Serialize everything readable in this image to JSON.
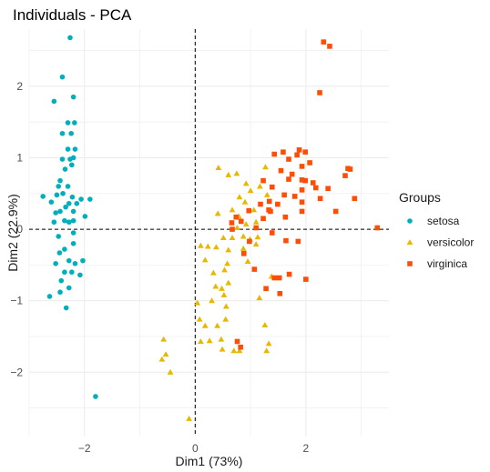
{
  "chart_data": {
    "type": "scatter",
    "title": "Individuals - PCA",
    "xlabel": "Dim1 (73%)",
    "ylabel": "Dim2 (22.9%)",
    "xlim": [
      -3.0,
      3.5
    ],
    "ylim": [
      -2.9,
      2.8
    ],
    "xticks": [
      -2,
      0,
      2
    ],
    "yticks": [
      -2,
      -1,
      0,
      1,
      2
    ],
    "grid": true,
    "reference_lines": {
      "x": 0,
      "y": 0,
      "style": "dashed"
    },
    "legend": {
      "title": "Groups",
      "position": "right"
    },
    "series": [
      {
        "name": "setosa",
        "marker": "circle",
        "color": "#00AFBB",
        "points": [
          [
            -2.26,
            2.68
          ],
          [
            -2.4,
            2.13
          ],
          [
            -2.55,
            1.79
          ],
          [
            -2.2,
            1.85
          ],
          [
            -2.3,
            1.49
          ],
          [
            -2.18,
            1.49
          ],
          [
            -2.4,
            1.34
          ],
          [
            -2.24,
            1.34
          ],
          [
            -2.3,
            1.12
          ],
          [
            -2.17,
            1.12
          ],
          [
            -2.4,
            0.98
          ],
          [
            -2.26,
            0.98
          ],
          [
            -2.2,
            1.0
          ],
          [
            -2.35,
            0.84
          ],
          [
            -2.23,
            0.9
          ],
          [
            -2.44,
            0.68
          ],
          [
            -2.3,
            0.6
          ],
          [
            -2.39,
            0.5
          ],
          [
            -2.5,
            0.48
          ],
          [
            -2.6,
            0.38
          ],
          [
            -2.22,
            0.45
          ],
          [
            -2.28,
            0.36
          ],
          [
            -2.75,
            0.46
          ],
          [
            -2.47,
            0.6
          ],
          [
            -2.2,
            0.25
          ],
          [
            -2.06,
            0.42
          ],
          [
            -1.9,
            0.42
          ],
          [
            -2.34,
            0.31
          ],
          [
            -2.14,
            0.36
          ],
          [
            -2.44,
            0.25
          ],
          [
            -2.52,
            0.23
          ],
          [
            -2.2,
            0.12
          ],
          [
            -2.36,
            0.12
          ],
          [
            -1.99,
            0.18
          ],
          [
            -2.28,
            0.1
          ],
          [
            -2.55,
            0.1
          ],
          [
            -2.2,
            -0.05
          ],
          [
            -2.47,
            -0.1
          ],
          [
            -2.2,
            -0.2
          ],
          [
            -2.36,
            -0.28
          ],
          [
            -2.45,
            -0.33
          ],
          [
            -2.17,
            -0.48
          ],
          [
            -2.28,
            -0.44
          ],
          [
            -2.03,
            -0.44
          ],
          [
            -2.52,
            -0.48
          ],
          [
            -2.36,
            -0.6
          ],
          [
            -2.23,
            -0.6
          ],
          [
            -2.08,
            -0.64
          ],
          [
            -2.42,
            -0.72
          ],
          [
            -2.28,
            -0.82
          ],
          [
            -2.63,
            -0.94
          ],
          [
            -2.44,
            -0.88
          ],
          [
            -2.33,
            -1.1
          ],
          [
            -1.8,
            -2.34
          ]
        ]
      },
      {
        "name": "versicolor",
        "marker": "triangle",
        "color": "#E7B800",
        "points": [
          [
            0.42,
            0.86
          ],
          [
            0.6,
            0.76
          ],
          [
            0.75,
            0.78
          ],
          [
            1.27,
            0.87
          ],
          [
            0.92,
            0.64
          ],
          [
            1.0,
            0.54
          ],
          [
            1.17,
            0.6
          ],
          [
            0.8,
            0.45
          ],
          [
            0.9,
            0.38
          ],
          [
            1.3,
            0.48
          ],
          [
            1.06,
            0.27
          ],
          [
            0.67,
            0.27
          ],
          [
            0.79,
            0.18
          ],
          [
            1.1,
            0.1
          ],
          [
            0.92,
            0.07
          ],
          [
            0.41,
            0.22
          ],
          [
            0.76,
            0.02
          ],
          [
            0.87,
            -0.1
          ],
          [
            0.67,
            -0.12
          ],
          [
            1.13,
            -0.11
          ],
          [
            0.51,
            -0.12
          ],
          [
            0.1,
            -0.23
          ],
          [
            0.23,
            -0.24
          ],
          [
            0.38,
            -0.25
          ],
          [
            0.99,
            -0.14
          ],
          [
            1.1,
            -0.21
          ],
          [
            0.87,
            -0.27
          ],
          [
            0.6,
            -0.29
          ],
          [
            0.18,
            -0.43
          ],
          [
            0.58,
            -0.48
          ],
          [
            0.53,
            -0.57
          ],
          [
            0.33,
            -0.61
          ],
          [
            0.95,
            -0.45
          ],
          [
            0.6,
            -0.75
          ],
          [
            0.48,
            -0.83
          ],
          [
            0.37,
            -0.8
          ],
          [
            0.52,
            -0.92
          ],
          [
            0.3,
            -1.0
          ],
          [
            1.16,
            -0.96
          ],
          [
            0.56,
            -1.08
          ],
          [
            0.55,
            -1.26
          ],
          [
            0.4,
            -1.35
          ],
          [
            0.08,
            -1.26
          ],
          [
            0.04,
            -1.03
          ],
          [
            0.1,
            -1.57
          ],
          [
            0.26,
            -1.56
          ],
          [
            0.49,
            -1.68
          ],
          [
            0.7,
            -1.7
          ],
          [
            0.8,
            -1.7
          ],
          [
            1.26,
            -1.34
          ],
          [
            1.29,
            -1.7
          ],
          [
            0.47,
            -1.54
          ],
          [
            0.18,
            -1.35
          ],
          [
            -0.57,
            -1.54
          ],
          [
            -0.53,
            -1.75
          ],
          [
            -0.6,
            -1.82
          ],
          [
            -0.45,
            -2.0
          ],
          [
            -0.11,
            -2.65
          ],
          [
            1.33,
            -1.6
          ],
          [
            1.38,
            -0.66
          ]
        ]
      },
      {
        "name": "virginica",
        "marker": "square",
        "color": "#FC4E07",
        "points": [
          [
            2.32,
            2.62
          ],
          [
            2.43,
            2.56
          ],
          [
            2.25,
            1.91
          ],
          [
            1.43,
            1.05
          ],
          [
            1.59,
            1.08
          ],
          [
            1.88,
            1.11
          ],
          [
            1.99,
            1.08
          ],
          [
            1.84,
            1.04
          ],
          [
            1.69,
            0.98
          ],
          [
            2.07,
            0.93
          ],
          [
            1.93,
            0.88
          ],
          [
            1.55,
            0.82
          ],
          [
            1.75,
            0.77
          ],
          [
            1.93,
            0.69
          ],
          [
            1.99,
            0.68
          ],
          [
            2.13,
            0.65
          ],
          [
            2.76,
            0.85
          ],
          [
            2.8,
            0.84
          ],
          [
            2.71,
            0.75
          ],
          [
            1.69,
            0.7
          ],
          [
            1.93,
            0.55
          ],
          [
            2.4,
            0.57
          ],
          [
            1.23,
            0.68
          ],
          [
            1.8,
            0.46
          ],
          [
            2.18,
            0.58
          ],
          [
            2.26,
            0.43
          ],
          [
            2.88,
            0.43
          ],
          [
            1.93,
            0.38
          ],
          [
            1.61,
            0.48
          ],
          [
            1.39,
            0.59
          ],
          [
            1.34,
            0.39
          ],
          [
            1.49,
            0.35
          ],
          [
            1.36,
            0.25
          ],
          [
            1.33,
            0.27
          ],
          [
            2.54,
            0.25
          ],
          [
            1.18,
            0.35
          ],
          [
            1.93,
            0.25
          ],
          [
            0.97,
            0.26
          ],
          [
            1.23,
            0.15
          ],
          [
            1.63,
            0.17
          ],
          [
            0.74,
            0.17
          ],
          [
            0.83,
            0.11
          ],
          [
            0.66,
            0.09
          ],
          [
            0.67,
            0.0
          ],
          [
            1.1,
            0.02
          ],
          [
            1.39,
            -0.05
          ],
          [
            3.29,
            0.02
          ],
          [
            0.98,
            -0.17
          ],
          [
            1.64,
            -0.16
          ],
          [
            1.86,
            -0.17
          ],
          [
            0.88,
            -0.34
          ],
          [
            1.07,
            -0.56
          ],
          [
            1.7,
            -0.63
          ],
          [
            1.52,
            -0.68
          ],
          [
            1.43,
            -0.68
          ],
          [
            1.28,
            -0.83
          ],
          [
            1.53,
            -0.9
          ],
          [
            2.0,
            -0.7
          ],
          [
            0.76,
            -1.57
          ],
          [
            0.82,
            -1.65
          ]
        ]
      }
    ]
  }
}
